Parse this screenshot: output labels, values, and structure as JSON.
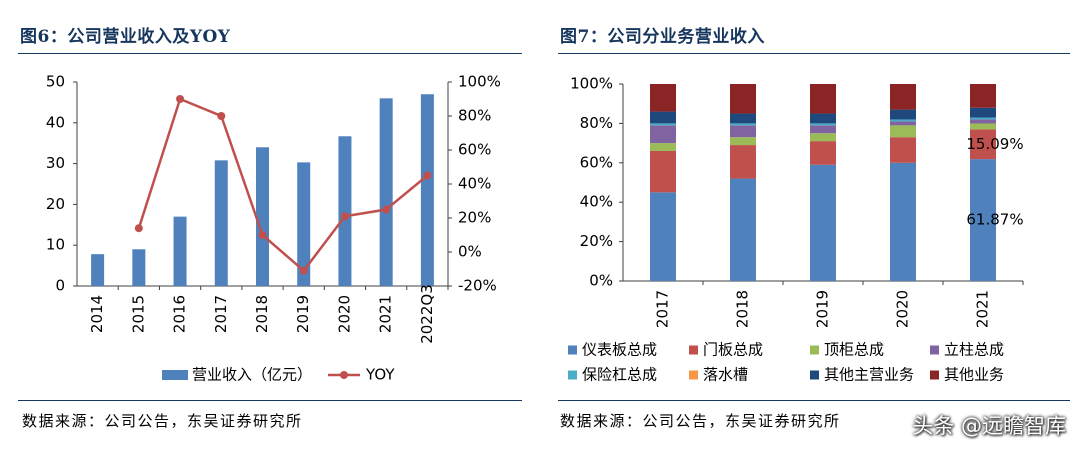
{
  "figures": {
    "left_title": "图6：公司营业收入及YOY",
    "right_title": "图7：公司分业务营业收入",
    "left_source": "数据来源：公司公告，东吴证券研究所",
    "right_source": "数据来源：公司公告，东吴证券研究所",
    "watermark": "头条 @远瞻智库"
  },
  "chart_data": [
    {
      "type": "bar",
      "categories": [
        "2014",
        "2015",
        "2016",
        "2017",
        "2018",
        "2019",
        "2020",
        "2021",
        "2022Q3"
      ],
      "series": [
        {
          "name": "营业收入（亿元）",
          "kind": "bar",
          "axis": "left",
          "color": "#4f81bd",
          "values": [
            7.8,
            9.0,
            17.0,
            30.8,
            34.0,
            30.3,
            36.7,
            46.0,
            47.0
          ]
        },
        {
          "name": "YOY",
          "kind": "line",
          "axis": "right",
          "color": "#c0504d",
          "values": [
            null,
            14,
            90,
            80,
            10,
            -11,
            21,
            25,
            45
          ]
        }
      ],
      "ylim_left": [
        0,
        50
      ],
      "yticks_left": [
        "0",
        "10",
        "20",
        "30",
        "40",
        "50"
      ],
      "ylim_right": [
        -20,
        100
      ],
      "yticks_right": [
        "-20%",
        "0%",
        "20%",
        "40%",
        "60%",
        "80%",
        "100%"
      ],
      "legend_position": "bottom",
      "grid": false
    },
    {
      "type": "bar",
      "stacked": true,
      "categories": [
        "2017",
        "2018",
        "2019",
        "2020",
        "2021"
      ],
      "series": [
        {
          "name": "仪表板总成",
          "color": "#4f81bd",
          "values": [
            45,
            52,
            59,
            60,
            61.87
          ]
        },
        {
          "name": "门板总成",
          "color": "#c0504d",
          "values": [
            21,
            17,
            12,
            13,
            15.09
          ]
        },
        {
          "name": "顶柜总成",
          "color": "#9bbb59",
          "values": [
            4,
            4,
            4,
            6,
            3
          ]
        },
        {
          "name": "立柱总成",
          "color": "#8064a2",
          "values": [
            9,
            6,
            4,
            2,
            2
          ]
        },
        {
          "name": "保险杠总成",
          "color": "#4bacc6",
          "values": [
            1,
            1,
            1,
            1,
            1
          ]
        },
        {
          "name": "落水槽",
          "color": "#f79646",
          "values": [
            0,
            0,
            0,
            0,
            0
          ]
        },
        {
          "name": "其他主营业务",
          "color": "#1f497d",
          "values": [
            6,
            5,
            5,
            5,
            5
          ]
        },
        {
          "name": "其他业务",
          "color": "#8b2525",
          "values": [
            14,
            15,
            15,
            13,
            12.04
          ]
        }
      ],
      "ylim": [
        0,
        100
      ],
      "yticks": [
        "0%",
        "20%",
        "40%",
        "60%",
        "80%",
        "100%"
      ],
      "annotations": [
        {
          "category": "2021",
          "series": "门板总成",
          "text": "15.09%"
        },
        {
          "category": "2021",
          "series": "仪表板总成",
          "text": "61.87%"
        }
      ],
      "legend_position": "bottom",
      "grid": false
    }
  ]
}
